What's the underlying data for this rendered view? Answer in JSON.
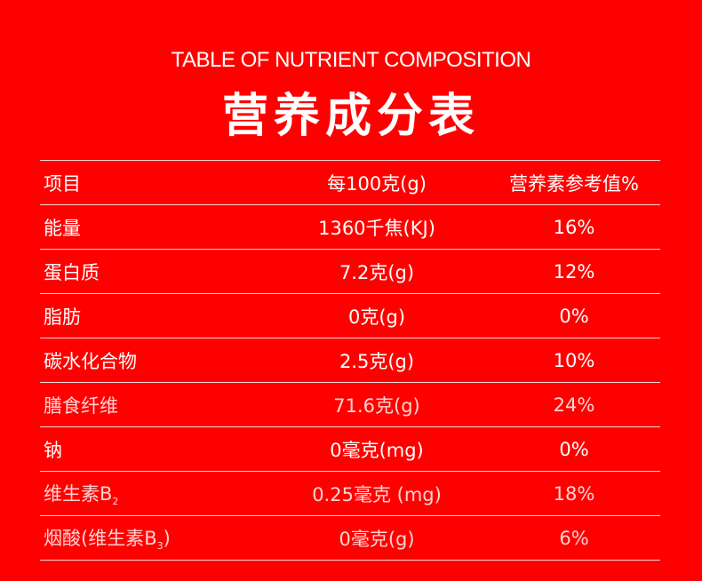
{
  "header": {
    "subtitle": "TABLE OF NUTRIENT COMPOSITION",
    "title": "营养成分表"
  },
  "colors": {
    "background": "#fe0000",
    "text": "#ffffff"
  },
  "table": {
    "columns": [
      "项目",
      "每100克(g)",
      "营养素参考值%"
    ],
    "rows": [
      {
        "item": "能量",
        "amount": "1360千焦(KJ)",
        "nrv": "16%",
        "style": "regular"
      },
      {
        "item": "蛋白质",
        "amount": "7.2克(g)",
        "nrv": "12%",
        "style": "regular"
      },
      {
        "item": "脂肪",
        "amount": "0克(g)",
        "nrv": "0%",
        "style": "regular"
      },
      {
        "item": "碳水化合物",
        "amount": "2.5克(g)",
        "nrv": "10%",
        "style": "regular"
      },
      {
        "item": "膳食纤维",
        "amount": "71.6克(g)",
        "nrv": "24%",
        "style": "light"
      },
      {
        "item": "钠",
        "amount": "0毫克(mg)",
        "nrv": "0%",
        "style": "regular"
      },
      {
        "item": "维生素B",
        "item_sub": "2",
        "amount": "0.25毫克 (mg)",
        "nrv": "18%",
        "style": "light"
      },
      {
        "item": "烟酸(维生素B",
        "item_sub": "3",
        "item_tail": ")",
        "amount": "0毫克(g)",
        "nrv": "6%",
        "style": "light"
      }
    ]
  }
}
